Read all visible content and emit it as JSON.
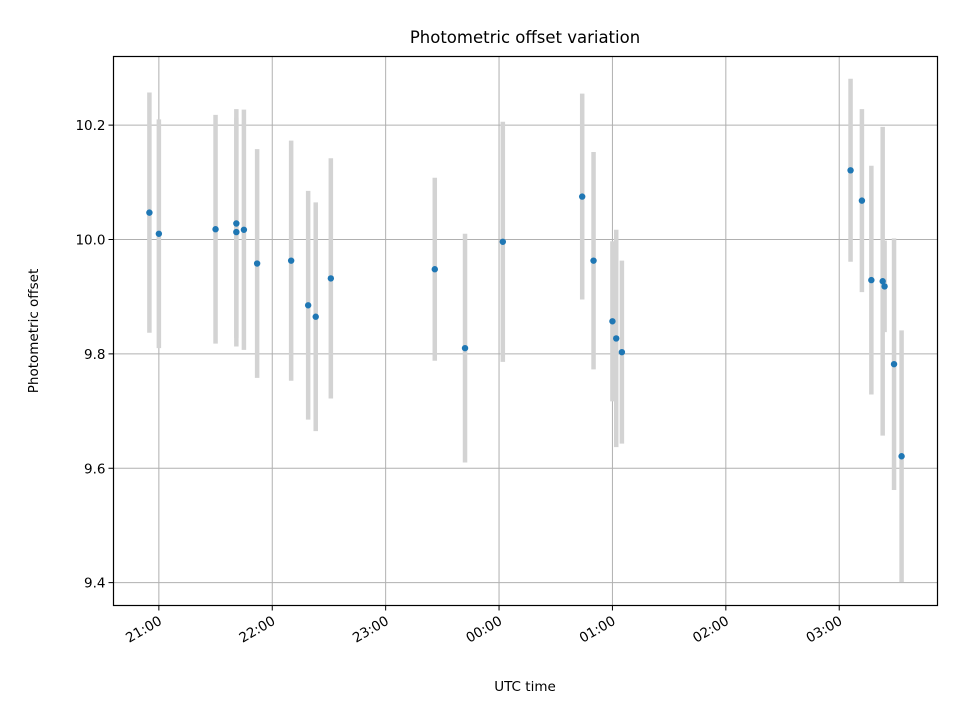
{
  "chart_data": {
    "type": "scatter",
    "title": "Photometric offset variation",
    "xlabel": "UTC time",
    "ylabel": "Photometric offset",
    "x_ticks": [
      "21:00",
      "22:00",
      "23:00",
      "00:00",
      "01:00",
      "02:00",
      "03:00"
    ],
    "y_ticks": [
      "9.4",
      "9.6",
      "9.8",
      "10.0",
      "10.2"
    ],
    "xlim": [
      "20:36",
      "03:52"
    ],
    "ylim": [
      9.36,
      10.32
    ],
    "grid": true,
    "marker_color": "#1f77b4",
    "errorbar_color": "#d3d3d3",
    "series": [
      {
        "x": [
          "20:55",
          "21:00",
          "21:30",
          "21:41",
          "21:41",
          "21:45",
          "21:52",
          "22:10",
          "22:19",
          "22:23",
          "22:31",
          "23:26",
          "23:42",
          "00:02",
          "00:44",
          "00:50",
          "01:00",
          "01:02",
          "01:05",
          "03:06",
          "03:12",
          "03:17",
          "03:23",
          "03:24",
          "03:29",
          "03:33"
        ],
        "y": [
          10.047,
          10.01,
          10.018,
          10.028,
          10.013,
          10.017,
          9.958,
          9.963,
          9.885,
          9.865,
          9.932,
          9.948,
          9.81,
          9.996,
          10.075,
          9.963,
          9.857,
          9.827,
          9.803,
          10.121,
          10.068,
          9.929,
          9.927,
          9.918,
          9.782,
          9.621
        ],
        "yerr": [
          0.21,
          0.2,
          0.2,
          0.2,
          0.2,
          0.21,
          0.2,
          0.21,
          0.2,
          0.2,
          0.21,
          0.16,
          0.2,
          0.21,
          0.18,
          0.19,
          0.14,
          0.19,
          0.16,
          0.16,
          0.16,
          0.2,
          0.27,
          0.08,
          0.22,
          0.22
        ]
      }
    ]
  }
}
